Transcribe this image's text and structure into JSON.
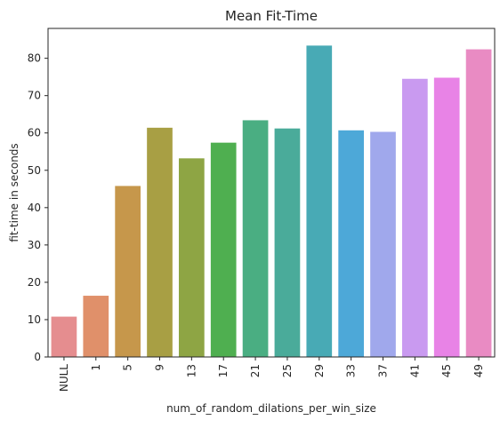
{
  "chart_data": {
    "type": "bar",
    "title": "Mean Fit-Time",
    "xlabel": "num_of_random_dilations_per_win_size",
    "ylabel": "fit-time in seconds",
    "categories": [
      "NULL",
      "1",
      "5",
      "9",
      "13",
      "17",
      "21",
      "25",
      "29",
      "33",
      "37",
      "41",
      "45",
      "49"
    ],
    "values": [
      10.8,
      16.4,
      45.8,
      61.4,
      53.2,
      57.4,
      63.4,
      61.2,
      83.4,
      60.7,
      60.3,
      74.5,
      74.8,
      82.4
    ],
    "ylim": [
      0,
      88
    ],
    "yticks": [
      0,
      10,
      20,
      30,
      40,
      50,
      60,
      70,
      80
    ],
    "grid": false,
    "legend": "none",
    "colors": [
      "#e58d8f",
      "#e0906a",
      "#c6974b",
      "#a89f44",
      "#8ea544",
      "#4faf50",
      "#4aae82",
      "#4aab9a",
      "#48aab5",
      "#4da8d8",
      "#a0a8ec",
      "#c99af0",
      "#e883e6",
      "#e98bc3"
    ]
  }
}
